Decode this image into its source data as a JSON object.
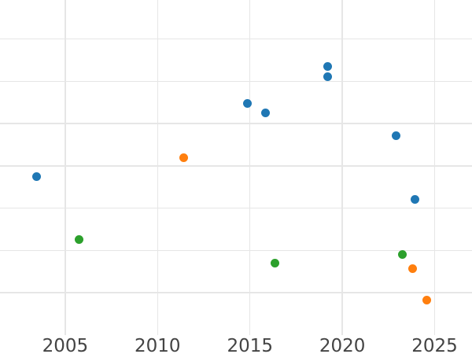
{
  "chart_data": {
    "type": "scatter",
    "title": "",
    "xlabel": "",
    "ylabel": "",
    "x_ticks": [
      2005,
      2010,
      2015,
      2020,
      2025
    ],
    "x_tick_labels": [
      "2005",
      "2010",
      "2015",
      "2020",
      "2025"
    ],
    "y_gridlines": [
      1,
      2,
      3,
      4,
      5,
      6,
      7
    ],
    "y_tick_labels_visible": false,
    "xlim": [
      2001.47,
      2027.02
    ],
    "ylim": [
      0,
      7.92
    ],
    "grid": true,
    "legend": "none",
    "note": "y-axis labels are not visible in the image; y values are expressed in gridline units (1 unit = one horizontal gridline spacing, 0 = bottom edge of plot area)",
    "marker_diameter_px": 11,
    "grid_color": "#e6e6e6",
    "tick_label_color": "#444444",
    "background_color": "#ffffff",
    "series": [
      {
        "name": "blue",
        "color": "#1f77b4",
        "points": [
          {
            "x": 2003.45,
            "y": 3.74
          },
          {
            "x": 2014.87,
            "y": 5.47
          },
          {
            "x": 2015.85,
            "y": 5.26
          },
          {
            "x": 2019.21,
            "y": 6.35
          },
          {
            "x": 2019.21,
            "y": 6.1
          },
          {
            "x": 2022.91,
            "y": 4.71
          },
          {
            "x": 2023.93,
            "y": 3.21
          }
        ]
      },
      {
        "name": "orange",
        "color": "#ff7f0e",
        "points": [
          {
            "x": 2011.4,
            "y": 4.2
          },
          {
            "x": 2023.79,
            "y": 1.58
          },
          {
            "x": 2024.57,
            "y": 0.82
          }
        ]
      },
      {
        "name": "green",
        "color": "#2ca02c",
        "points": [
          {
            "x": 2005.77,
            "y": 2.26
          },
          {
            "x": 2016.37,
            "y": 1.7
          },
          {
            "x": 2023.25,
            "y": 1.9
          }
        ]
      }
    ]
  }
}
